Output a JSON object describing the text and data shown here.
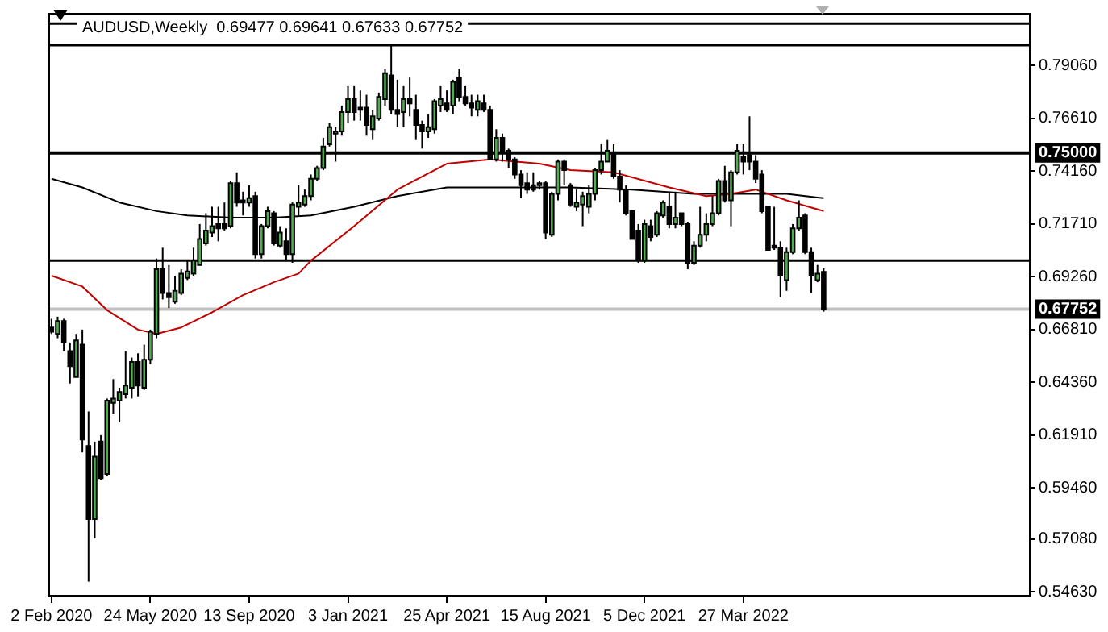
{
  "chart_data": {
    "type": "candlestick",
    "title": "AUDUSD,Weekly  0.69477 0.69641 0.67633 0.67752",
    "x": [
      "2020-02-02",
      "2020-02-09",
      "2020-02-16",
      "2020-02-23",
      "2020-03-01",
      "2020-03-08",
      "2020-03-15",
      "2020-03-22",
      "2020-03-29",
      "2020-04-05",
      "2020-04-12",
      "2020-04-19",
      "2020-04-26",
      "2020-05-03",
      "2020-05-10",
      "2020-05-17",
      "2020-05-24",
      "2020-05-31",
      "2020-06-07",
      "2020-06-14",
      "2020-06-21",
      "2020-06-28",
      "2020-07-05",
      "2020-07-12",
      "2020-07-19",
      "2020-07-26",
      "2020-08-02",
      "2020-08-09",
      "2020-08-16",
      "2020-08-23",
      "2020-08-30",
      "2020-09-06",
      "2020-09-13",
      "2020-09-20",
      "2020-09-27",
      "2020-10-04",
      "2020-10-11",
      "2020-10-18",
      "2020-10-25",
      "2020-11-01",
      "2020-11-08",
      "2020-11-15",
      "2020-11-22",
      "2020-11-29",
      "2020-12-06",
      "2020-12-13",
      "2020-12-20",
      "2020-12-27",
      "2021-01-03",
      "2021-01-10",
      "2021-01-17",
      "2021-01-24",
      "2021-01-31",
      "2021-02-07",
      "2021-02-14",
      "2021-02-21",
      "2021-02-28",
      "2021-03-07",
      "2021-03-14",
      "2021-03-21",
      "2021-03-28",
      "2021-04-04",
      "2021-04-11",
      "2021-04-18",
      "2021-04-25",
      "2021-05-02",
      "2021-05-09",
      "2021-05-16",
      "2021-05-23",
      "2021-05-30",
      "2021-06-06",
      "2021-06-13",
      "2021-06-20",
      "2021-06-27",
      "2021-07-04",
      "2021-07-11",
      "2021-07-18",
      "2021-07-25",
      "2021-08-01",
      "2021-08-08",
      "2021-08-15",
      "2021-08-22",
      "2021-08-29",
      "2021-09-05",
      "2021-09-12",
      "2021-09-19",
      "2021-09-26",
      "2021-10-03",
      "2021-10-10",
      "2021-10-17",
      "2021-10-24",
      "2021-10-31",
      "2021-11-07",
      "2021-11-14",
      "2021-11-21",
      "2021-11-28",
      "2021-12-05",
      "2021-12-12",
      "2021-12-19",
      "2021-12-26",
      "2022-01-02",
      "2022-01-09",
      "2022-01-16",
      "2022-01-23",
      "2022-01-30",
      "2022-02-06",
      "2022-02-13",
      "2022-02-20",
      "2022-02-27",
      "2022-03-06",
      "2022-03-13",
      "2022-03-20",
      "2022-03-27",
      "2022-04-03",
      "2022-04-10",
      "2022-04-17",
      "2022-04-24",
      "2022-05-01",
      "2022-05-08",
      "2022-05-15",
      "2022-05-22",
      "2022-05-29",
      "2022-06-05",
      "2022-06-12",
      "2022-06-19",
      "2022-06-26"
    ],
    "ohlc": [
      [
        0.669,
        0.673,
        0.666,
        0.667
      ],
      [
        0.666,
        0.674,
        0.664,
        0.672
      ],
      [
        0.672,
        0.673,
        0.658,
        0.662
      ],
      [
        0.658,
        0.662,
        0.643,
        0.651
      ],
      [
        0.646,
        0.666,
        0.646,
        0.663
      ],
      [
        0.661,
        0.668,
        0.611,
        0.617
      ],
      [
        0.614,
        0.63,
        0.551,
        0.58
      ],
      [
        0.58,
        0.616,
        0.571,
        0.609
      ],
      [
        0.616,
        0.619,
        0.598,
        0.599
      ],
      [
        0.601,
        0.636,
        0.6,
        0.635
      ],
      [
        0.634,
        0.645,
        0.629,
        0.636
      ],
      [
        0.635,
        0.641,
        0.625,
        0.639
      ],
      [
        0.638,
        0.658,
        0.636,
        0.642
      ],
      [
        0.641,
        0.655,
        0.636,
        0.653
      ],
      [
        0.653,
        0.657,
        0.637,
        0.642
      ],
      [
        0.641,
        0.661,
        0.64,
        0.654
      ],
      [
        0.654,
        0.668,
        0.652,
        0.667
      ],
      [
        0.666,
        0.701,
        0.664,
        0.696
      ],
      [
        0.696,
        0.706,
        0.682,
        0.685
      ],
      [
        0.685,
        0.698,
        0.678,
        0.683
      ],
      [
        0.681,
        0.693,
        0.68,
        0.686
      ],
      [
        0.685,
        0.696,
        0.684,
        0.694
      ],
      [
        0.692,
        0.7,
        0.691,
        0.695
      ],
      [
        0.694,
        0.706,
        0.693,
        0.7
      ],
      [
        0.698,
        0.717,
        0.698,
        0.71
      ],
      [
        0.708,
        0.722,
        0.707,
        0.714
      ],
      [
        0.713,
        0.725,
        0.711,
        0.716
      ],
      [
        0.717,
        0.725,
        0.709,
        0.715
      ],
      [
        0.717,
        0.727,
        0.714,
        0.715
      ],
      [
        0.716,
        0.737,
        0.715,
        0.736
      ],
      [
        0.736,
        0.741,
        0.725,
        0.727
      ],
      [
        0.728,
        0.732,
        0.721,
        0.727
      ],
      [
        0.727,
        0.735,
        0.725,
        0.729
      ],
      [
        0.73,
        0.732,
        0.701,
        0.703
      ],
      [
        0.703,
        0.717,
        0.701,
        0.716
      ],
      [
        0.716,
        0.725,
        0.715,
        0.723
      ],
      [
        0.722,
        0.723,
        0.707,
        0.708
      ],
      [
        0.707,
        0.716,
        0.706,
        0.713
      ],
      [
        0.709,
        0.715,
        0.7,
        0.703
      ],
      [
        0.703,
        0.727,
        0.699,
        0.726
      ],
      [
        0.725,
        0.735,
        0.721,
        0.727
      ],
      [
        0.726,
        0.733,
        0.725,
        0.73
      ],
      [
        0.73,
        0.74,
        0.728,
        0.738
      ],
      [
        0.738,
        0.744,
        0.737,
        0.743
      ],
      [
        0.743,
        0.757,
        0.742,
        0.753
      ],
      [
        0.754,
        0.764,
        0.753,
        0.762
      ],
      [
        0.759,
        0.762,
        0.746,
        0.76
      ],
      [
        0.76,
        0.772,
        0.758,
        0.769
      ],
      [
        0.769,
        0.781,
        0.764,
        0.775
      ],
      [
        0.775,
        0.781,
        0.765,
        0.769
      ],
      [
        0.771,
        0.779,
        0.765,
        0.77
      ],
      [
        0.771,
        0.777,
        0.758,
        0.763
      ],
      [
        0.761,
        0.77,
        0.756,
        0.767
      ],
      [
        0.766,
        0.778,
        0.765,
        0.776
      ],
      [
        0.775,
        0.789,
        0.772,
        0.787
      ],
      [
        0.786,
        0.8,
        0.768,
        0.77
      ],
      [
        0.77,
        0.784,
        0.762,
        0.768
      ],
      [
        0.769,
        0.781,
        0.762,
        0.775
      ],
      [
        0.775,
        0.785,
        0.767,
        0.773
      ],
      [
        0.77,
        0.777,
        0.756,
        0.763
      ],
      [
        0.763,
        0.765,
        0.752,
        0.76
      ],
      [
        0.76,
        0.768,
        0.757,
        0.762
      ],
      [
        0.761,
        0.775,
        0.759,
        0.774
      ],
      [
        0.772,
        0.781,
        0.769,
        0.775
      ],
      [
        0.773,
        0.779,
        0.769,
        0.77
      ],
      [
        0.772,
        0.784,
        0.768,
        0.783
      ],
      [
        0.785,
        0.789,
        0.774,
        0.776
      ],
      [
        0.776,
        0.781,
        0.772,
        0.773
      ],
      [
        0.773,
        0.777,
        0.767,
        0.771
      ],
      [
        0.77,
        0.777,
        0.767,
        0.774
      ],
      [
        0.773,
        0.777,
        0.769,
        0.77
      ],
      [
        0.77,
        0.772,
        0.747,
        0.747
      ],
      [
        0.747,
        0.761,
        0.746,
        0.757
      ],
      [
        0.757,
        0.759,
        0.746,
        0.751
      ],
      [
        0.751,
        0.752,
        0.743,
        0.747
      ],
      [
        0.747,
        0.748,
        0.738,
        0.74
      ],
      [
        0.74,
        0.742,
        0.729,
        0.735
      ],
      [
        0.736,
        0.741,
        0.731,
        0.733
      ],
      [
        0.735,
        0.741,
        0.732,
        0.733
      ],
      [
        0.735,
        0.737,
        0.733,
        0.736
      ],
      [
        0.736,
        0.737,
        0.71,
        0.713
      ],
      [
        0.712,
        0.732,
        0.711,
        0.731
      ],
      [
        0.731,
        0.747,
        0.728,
        0.746
      ],
      [
        0.746,
        0.747,
        0.735,
        0.742
      ],
      [
        0.735,
        0.736,
        0.725,
        0.726
      ],
      [
        0.725,
        0.733,
        0.723,
        0.727
      ],
      [
        0.726,
        0.732,
        0.716,
        0.73
      ],
      [
        0.725,
        0.735,
        0.722,
        0.731
      ],
      [
        0.731,
        0.743,
        0.728,
        0.742
      ],
      [
        0.742,
        0.754,
        0.74,
        0.746
      ],
      [
        0.746,
        0.756,
        0.746,
        0.751
      ],
      [
        0.75,
        0.754,
        0.738,
        0.739
      ],
      [
        0.739,
        0.742,
        0.727,
        0.733
      ],
      [
        0.733,
        0.735,
        0.721,
        0.722
      ],
      [
        0.723,
        0.723,
        0.71,
        0.71
      ],
      [
        0.714,
        0.717,
        0.699,
        0.7
      ],
      [
        0.7,
        0.719,
        0.699,
        0.717
      ],
      [
        0.716,
        0.719,
        0.709,
        0.711
      ],
      [
        0.712,
        0.723,
        0.711,
        0.722
      ],
      [
        0.721,
        0.728,
        0.72,
        0.727
      ],
      [
        0.725,
        0.732,
        0.715,
        0.717
      ],
      [
        0.717,
        0.732,
        0.715,
        0.72
      ],
      [
        0.722,
        0.722,
        0.716,
        0.717
      ],
      [
        0.717,
        0.718,
        0.696,
        0.699
      ],
      [
        0.699,
        0.709,
        0.698,
        0.707
      ],
      [
        0.707,
        0.725,
        0.706,
        0.712
      ],
      [
        0.712,
        0.722,
        0.709,
        0.717
      ],
      [
        0.717,
        0.73,
        0.716,
        0.722
      ],
      [
        0.722,
        0.738,
        0.721,
        0.737
      ],
      [
        0.737,
        0.744,
        0.727,
        0.728
      ],
      [
        0.728,
        0.742,
        0.716,
        0.741
      ],
      [
        0.741,
        0.754,
        0.74,
        0.751
      ],
      [
        0.748,
        0.754,
        0.74,
        0.746
      ],
      [
        0.749,
        0.767,
        0.742,
        0.746
      ],
      [
        0.746,
        0.749,
        0.736,
        0.738
      ],
      [
        0.74,
        0.742,
        0.722,
        0.723
      ],
      [
        0.725,
        0.725,
        0.705,
        0.705
      ],
      [
        0.707,
        0.725,
        0.705,
        0.706
      ],
      [
        0.706,
        0.709,
        0.683,
        0.693
      ],
      [
        0.691,
        0.706,
        0.686,
        0.704
      ],
      [
        0.704,
        0.717,
        0.703,
        0.715
      ],
      [
        0.715,
        0.728,
        0.714,
        0.72
      ],
      [
        0.721,
        0.722,
        0.703,
        0.704
      ],
      [
        0.704,
        0.706,
        0.685,
        0.693
      ],
      [
        0.691,
        0.698,
        0.69,
        0.694
      ],
      [
        0.69477,
        0.69641,
        0.67633,
        0.67752
      ]
    ],
    "series": [
      {
        "type": "line",
        "color": "#c00000",
        "x": [
          "2020-02-02",
          "2020-03-08",
          "2020-04-05",
          "2020-05-10",
          "2020-05-31",
          "2020-06-28",
          "2020-08-02",
          "2020-09-06",
          "2020-10-11",
          "2020-11-08",
          "2020-11-22",
          "2021-01-10",
          "2021-02-28",
          "2021-04-25",
          "2021-06-13",
          "2021-08-08",
          "2021-09-12",
          "2021-10-31",
          "2022-01-02",
          "2022-02-13",
          "2022-03-13",
          "2022-04-10",
          "2022-05-15",
          "2022-06-26"
        ],
        "values": [
          0.693,
          0.688,
          0.677,
          0.668,
          0.666,
          0.669,
          0.676,
          0.684,
          0.69,
          0.694,
          0.7,
          0.716,
          0.733,
          0.745,
          0.747,
          0.745,
          0.742,
          0.741,
          0.734,
          0.73,
          0.731,
          0.733,
          0.728,
          0.723
        ]
      },
      {
        "type": "line",
        "color": "#000000",
        "x": [
          "2020-02-02",
          "2020-03-08",
          "2020-04-19",
          "2020-05-31",
          "2020-07-05",
          "2020-08-23",
          "2020-10-11",
          "2020-11-22",
          "2021-01-10",
          "2021-02-28",
          "2021-04-25",
          "2021-06-13",
          "2021-08-08",
          "2021-09-12",
          "2021-11-21",
          "2022-01-30",
          "2022-04-10",
          "2022-05-15",
          "2022-06-26"
        ],
        "values": [
          0.738,
          0.734,
          0.727,
          0.723,
          0.721,
          0.72,
          0.72,
          0.721,
          0.725,
          0.73,
          0.734,
          0.734,
          0.734,
          0.734,
          0.733,
          0.731,
          0.731,
          0.731,
          0.729
        ]
      }
    ],
    "xlim": [
      "2020-01-29T12:00",
      "2023-02-15T12:00"
    ],
    "xticks": [
      {
        "value": "2020-02-02",
        "label": "2 Feb 2020"
      },
      {
        "value": "2020-05-24",
        "label": "24 May 2020"
      },
      {
        "value": "2020-09-13",
        "label": "13 Sep 2020"
      },
      {
        "value": "2021-01-03",
        "label": "3 Jan 2021"
      },
      {
        "value": "2021-04-25",
        "label": "25 Apr 2021"
      },
      {
        "value": "2021-08-15",
        "label": "15 Aug 2021"
      },
      {
        "value": "2021-12-05",
        "label": "5 Dec 2021"
      },
      {
        "value": "2022-03-27",
        "label": "27 Mar 2022"
      }
    ],
    "ylim": [
      0.5441,
      0.815
    ],
    "yticks": [
      {
        "value": 0.7906,
        "label": "0.79060"
      },
      {
        "value": 0.7661,
        "label": "0.76610"
      },
      {
        "value": 0.7416,
        "label": "0.74160"
      },
      {
        "value": 0.7171,
        "label": "0.71710"
      },
      {
        "value": 0.6926,
        "label": "0.69260"
      },
      {
        "value": 0.6681,
        "label": "0.66810"
      },
      {
        "value": 0.6436,
        "label": "0.64360"
      },
      {
        "value": 0.6191,
        "label": "0.61910"
      },
      {
        "value": 0.5946,
        "label": "0.59460"
      },
      {
        "value": 0.5708,
        "label": "0.57080"
      },
      {
        "value": 0.5463,
        "label": "0.54630"
      }
    ],
    "ref_lines": [
      {
        "axis": "y",
        "value": 0.81,
        "color": "#000000"
      },
      {
        "axis": "y",
        "value": 0.8,
        "color": "#000000"
      },
      {
        "axis": "y",
        "value": 0.75,
        "label": "0.75000",
        "color": "#000000"
      },
      {
        "axis": "y",
        "value": 0.7,
        "color": "#000000"
      },
      {
        "axis": "y",
        "value": 0.67752,
        "label": "0.67752",
        "color": "#c0c0c0"
      }
    ]
  }
}
